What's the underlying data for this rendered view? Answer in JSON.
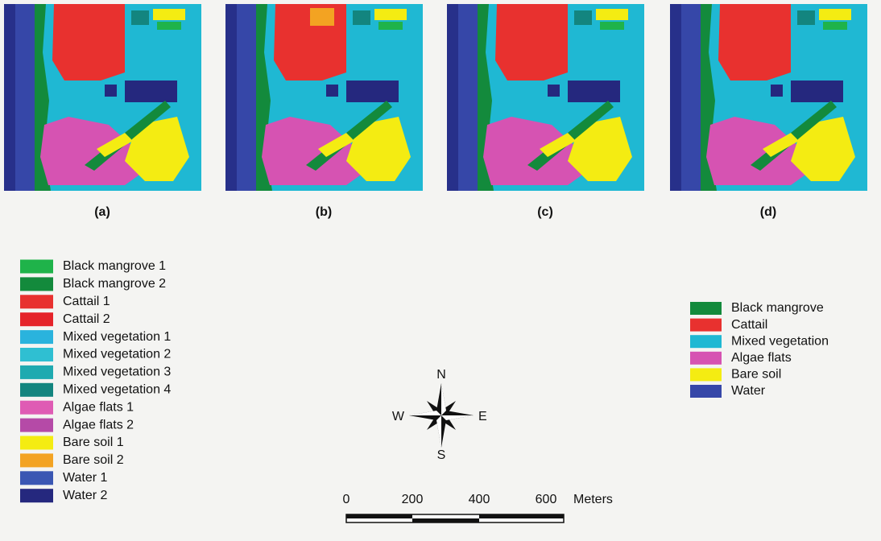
{
  "panels": [
    {
      "label": "(a)"
    },
    {
      "label": "(b)"
    },
    {
      "label": "(c)"
    },
    {
      "label": "(d)"
    }
  ],
  "legend_detailed": [
    {
      "label": "Black mangrove 1",
      "color": "#1fb34a"
    },
    {
      "label": "Black mangrove 2",
      "color": "#138a3c"
    },
    {
      "label": "Cattail 1",
      "color": "#e8312f"
    },
    {
      "label": "Cattail 2",
      "color": "#e5242a"
    },
    {
      "label": "Mixed vegetation 1",
      "color": "#2ab3dd"
    },
    {
      "label": "Mixed vegetation 2",
      "color": "#2fbfd2"
    },
    {
      "label": "Mixed vegetation 3",
      "color": "#1faab0"
    },
    {
      "label": "Mixed vegetation 4",
      "color": "#13857f"
    },
    {
      "label": "Algae flats 1",
      "color": "#df5bb4"
    },
    {
      "label": "Algae flats 2",
      "color": "#b54aa7"
    },
    {
      "label": "Bare soil 1",
      "color": "#f4ec12"
    },
    {
      "label": "Bare soil 2",
      "color": "#f3a322"
    },
    {
      "label": "Water 1",
      "color": "#3b57b3"
    },
    {
      "label": "Water 2",
      "color": "#25287e"
    }
  ],
  "legend_merged": [
    {
      "label": "Black mangrove",
      "color": "#138a3c"
    },
    {
      "label": "Cattail",
      "color": "#e8312f"
    },
    {
      "label": "Mixed vegetation",
      "color": "#1fb8d3"
    },
    {
      "label": "Algae flats",
      "color": "#d653b2"
    },
    {
      "label": "Bare soil",
      "color": "#f4ec12"
    },
    {
      "label": "Water",
      "color": "#3647a8"
    }
  ],
  "compass": {
    "n": "N",
    "s": "S",
    "e": "E",
    "w": "W"
  },
  "scale_bar": {
    "labels": [
      "0",
      "200",
      "400",
      "600"
    ],
    "unit": "Meters"
  }
}
